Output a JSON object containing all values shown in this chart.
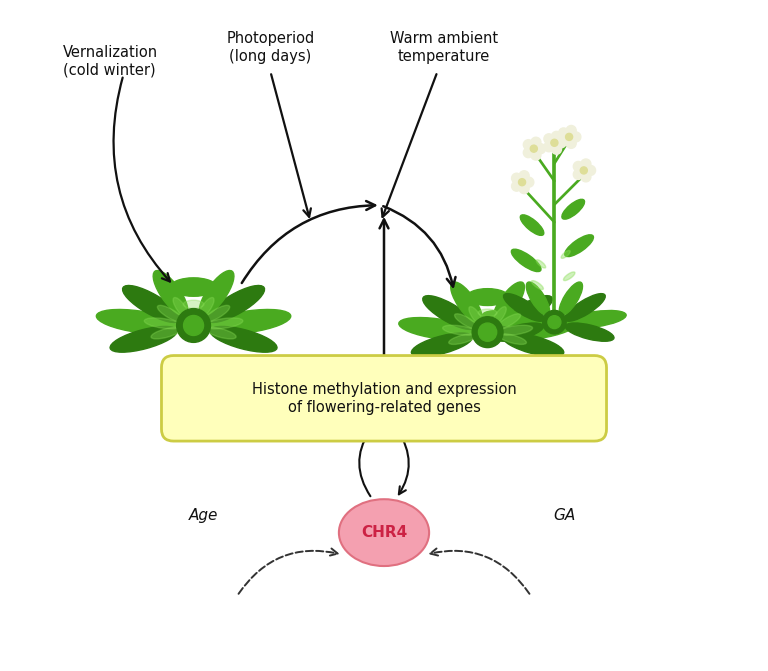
{
  "bg_color": "#ffffff",
  "labels": {
    "vernalization": "Vernalization\n(cold winter)",
    "photoperiod": "Photoperiod\n(long days)",
    "warm_temp": "Warm ambient\ntemperature",
    "histone_box": "Histone methylation and expression\nof flowering-related genes",
    "chr4": "CHR4",
    "age": "Age",
    "ga": "GA"
  },
  "colors": {
    "histone_box_face": "#ffffbb",
    "histone_box_edge": "#cccc44",
    "chr4_face": "#f4a0b0",
    "chr4_edge": "#e07080",
    "chr4_text": "#cc2244",
    "arrow_solid": "#111111",
    "arrow_dashed": "#333333",
    "text_main": "#111111",
    "plant_green_dark": "#2d7a10",
    "plant_green_mid": "#4aaa20",
    "plant_green_light": "#6acc33",
    "plant_green_highlight": "#88dd55",
    "plant_flower_white": "#f0f0dc",
    "stem_color": "#4aaa20"
  },
  "layout": {
    "fig_width": 7.68,
    "fig_height": 6.71,
    "dpi": 100
  }
}
